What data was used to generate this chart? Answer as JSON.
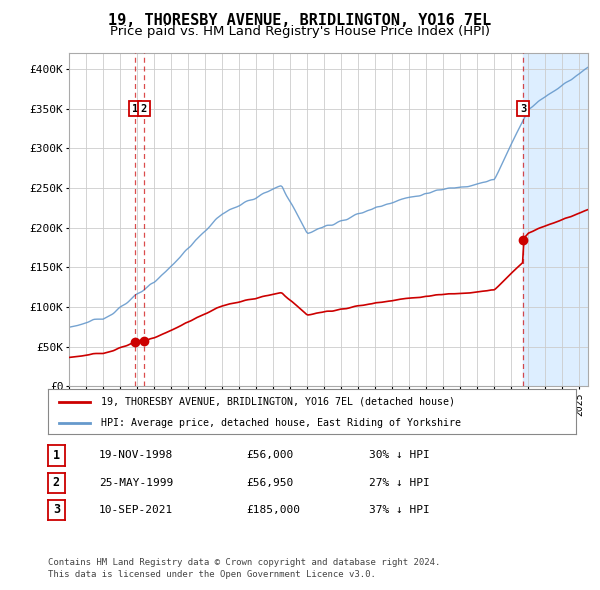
{
  "title": "19, THORESBY AVENUE, BRIDLINGTON, YO16 7EL",
  "subtitle": "Price paid vs. HM Land Registry's House Price Index (HPI)",
  "title_fontsize": 11,
  "subtitle_fontsize": 9.5,
  "background_color": "#ffffff",
  "plot_bg_color": "#ffffff",
  "grid_color": "#cccccc",
  "sale_color": "#cc0000",
  "hpi_color": "#6699cc",
  "ylim": [
    0,
    420000
  ],
  "yticks": [
    0,
    50000,
    100000,
    150000,
    200000,
    250000,
    300000,
    350000,
    400000
  ],
  "ytick_labels": [
    "£0",
    "£50K",
    "£100K",
    "£150K",
    "£200K",
    "£250K",
    "£300K",
    "£350K",
    "£400K"
  ],
  "sale_dates": [
    1998.88,
    1999.4,
    2021.69
  ],
  "sale_prices": [
    56000,
    56950,
    185000
  ],
  "vline_dates": [
    1998.88,
    1999.4,
    2021.69
  ],
  "legend_sale_label": "19, THORESBY AVENUE, BRIDLINGTON, YO16 7EL (detached house)",
  "legend_hpi_label": "HPI: Average price, detached house, East Riding of Yorkshire",
  "table_rows": [
    {
      "num": "1",
      "date": "19-NOV-1998",
      "price": "£56,000",
      "pct": "30% ↓ HPI"
    },
    {
      "num": "2",
      "date": "25-MAY-1999",
      "price": "£56,950",
      "pct": "27% ↓ HPI"
    },
    {
      "num": "3",
      "date": "10-SEP-2021",
      "price": "£185,000",
      "pct": "37% ↓ HPI"
    }
  ],
  "footer": "Contains HM Land Registry data © Crown copyright and database right 2024.\nThis data is licensed under the Open Government Licence v3.0.",
  "xmin": 1995.0,
  "xmax": 2025.5,
  "future_start": 2021.69,
  "future_color": "#ddeeff"
}
